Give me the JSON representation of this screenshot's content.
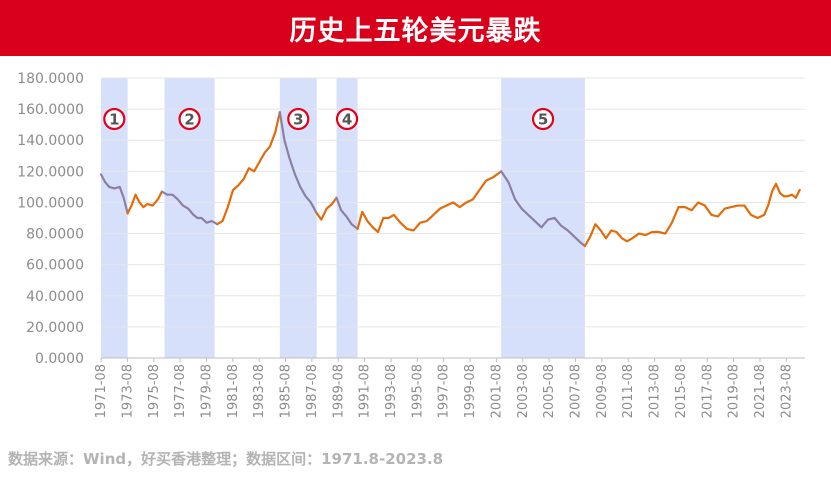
{
  "title": "历史上五轮美元暴跌",
  "source_note": "数据来源：Wind，好买香港整理；数据区间：1971.8-2023.8",
  "colors": {
    "banner": "#d9001b",
    "line_normal": "#e36c0a",
    "line_decline": "#8c7fa6",
    "shade": "#d6e0fb",
    "marker_ring": "#e3001b",
    "grid": "#e6e6e6"
  },
  "chart_data": {
    "type": "line",
    "title": "",
    "xlabel": "",
    "ylabel": "",
    "ylim": [
      0,
      180
    ],
    "xlim": [
      1971.58,
      2025.0
    ],
    "grid": "horizontal",
    "y_ticks": [
      "0.0000",
      "20.0000",
      "40.0000",
      "60.0000",
      "80.0000",
      "100.0000",
      "120.0000",
      "140.0000",
      "160.0000",
      "180.0000"
    ],
    "x_ticks": [
      "1971-08",
      "1973-08",
      "1975-08",
      "1977-08",
      "1979-08",
      "1981-08",
      "1983-08",
      "1985-08",
      "1987-08",
      "1989-08",
      "1991-08",
      "1993-08",
      "1995-08",
      "1997-08",
      "1999-08",
      "2001-08",
      "2003-08",
      "2005-08",
      "2007-08",
      "2009-08",
      "2011-08",
      "2013-08",
      "2015-08",
      "2017-08",
      "2019-08",
      "2021-08",
      "2023-08"
    ],
    "decline_periods": [
      {
        "label": "1",
        "start": 1971.58,
        "end": 1973.6
      },
      {
        "label": "2",
        "start": 1976.4,
        "end": 1980.2
      },
      {
        "label": "3",
        "start": 1985.15,
        "end": 1987.95
      },
      {
        "label": "4",
        "start": 1989.45,
        "end": 1991.05
      },
      {
        "label": "5",
        "start": 2001.95,
        "end": 2008.3
      }
    ],
    "series": [
      {
        "x": [
          1971.58,
          1971.9,
          1972.2,
          1972.6,
          1973.0,
          1973.3,
          1973.6,
          1973.9,
          1974.2,
          1974.5,
          1974.8,
          1975.1,
          1975.5,
          1975.9,
          1976.2,
          1976.6,
          1977.0,
          1977.4,
          1977.8,
          1978.2,
          1978.6,
          1978.9,
          1979.2,
          1979.6,
          1980.0,
          1980.4,
          1980.8,
          1981.2,
          1981.6,
          1982.0,
          1982.4,
          1982.8,
          1983.2,
          1983.6,
          1984.0,
          1984.4,
          1984.8,
          1985.15,
          1985.5,
          1985.9,
          1986.3,
          1986.7,
          1987.1,
          1987.5,
          1987.95,
          1988.3,
          1988.7,
          1989.1,
          1989.45,
          1989.8,
          1990.2,
          1990.6,
          1991.05,
          1991.4,
          1991.8,
          1992.2,
          1992.6,
          1993.0,
          1993.4,
          1993.8,
          1994.3,
          1994.8,
          1995.3,
          1995.8,
          1996.3,
          1996.8,
          1997.3,
          1997.8,
          1998.3,
          1998.8,
          1999.3,
          1999.8,
          2000.3,
          2000.8,
          2001.3,
          2001.95,
          2002.5,
          2003.0,
          2003.5,
          2004.0,
          2004.5,
          2005.0,
          2005.5,
          2006.0,
          2006.5,
          2007.0,
          2007.5,
          2008.0,
          2008.3,
          2008.7,
          2009.1,
          2009.5,
          2009.9,
          2010.3,
          2010.7,
          2011.1,
          2011.5,
          2011.9,
          2012.4,
          2012.9,
          2013.4,
          2013.9,
          2014.4,
          2014.9,
          2015.4,
          2015.9,
          2016.4,
          2016.9,
          2017.4,
          2017.9,
          2018.4,
          2018.9,
          2019.4,
          2019.9,
          2020.4,
          2020.9,
          2021.4,
          2021.9,
          2022.2,
          2022.5,
          2022.8,
          2023.1,
          2023.4,
          2023.7,
          2024.0,
          2024.3,
          2024.6
        ],
        "y": [
          118,
          113,
          110,
          109,
          110,
          103,
          93,
          98,
          105,
          100,
          97,
          99,
          98,
          102,
          107,
          105,
          105,
          102,
          98,
          96,
          92,
          90,
          90,
          87,
          88,
          86,
          88,
          97,
          108,
          111,
          115,
          122,
          120,
          126,
          132,
          136,
          145,
          158,
          140,
          128,
          118,
          110,
          104,
          100,
          93,
          89,
          96,
          99,
          103,
          95,
          91,
          86,
          83,
          94,
          88,
          84,
          81,
          90,
          90,
          92,
          87,
          83,
          82,
          87,
          88,
          92,
          96,
          98,
          100,
          97,
          100,
          102,
          108,
          114,
          116,
          120,
          113,
          102,
          96,
          92,
          88,
          84,
          89,
          90,
          85,
          82,
          78,
          74,
          72,
          78,
          86,
          82,
          77,
          82,
          81,
          77,
          75,
          77,
          80,
          79,
          81,
          81,
          80,
          87,
          97,
          97,
          95,
          100,
          98,
          92,
          91,
          96,
          97,
          98,
          98,
          92,
          90,
          92,
          98,
          107,
          112,
          106,
          104,
          104,
          105,
          103,
          108
        ]
      }
    ]
  }
}
